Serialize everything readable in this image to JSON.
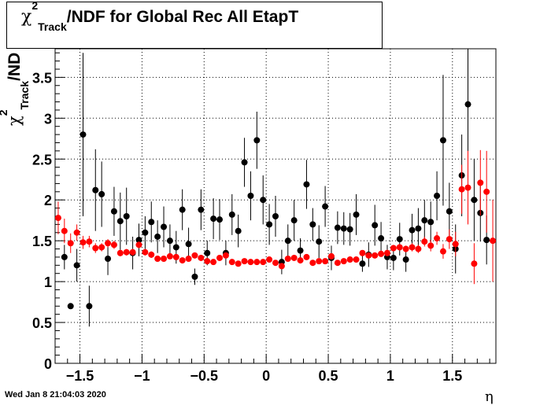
{
  "title": {
    "symbol": "χ",
    "superscript": "2",
    "subscript": "Track",
    "rest": "/NDF for Global Rec All EtapT"
  },
  "ylabel": {
    "symbol": "χ",
    "superscript": "2",
    "subscript": "Track",
    "rest": "/ND"
  },
  "xlabel": "η",
  "footer": "Wed Jan  8 21:04:03 2020",
  "colors": {
    "series_black": "#000000",
    "series_red": "#ff0000",
    "grid": "#000000"
  },
  "chart_data": {
    "type": "scatter",
    "title": "χ2 Track /NDF for Global Rec All EtapT",
    "xlabel": "η",
    "ylabel": "χ2 Track /ND",
    "xlim": [
      -1.7,
      1.85
    ],
    "ylim": [
      0,
      3.85
    ],
    "x_ticks": [
      -1.5,
      -1,
      -0.5,
      0,
      0.5,
      1,
      1.5
    ],
    "x_tick_labels": [
      "−1.5",
      "−1",
      "−0.5",
      "0",
      "0.5",
      "1",
      "1.5"
    ],
    "y_ticks": [
      0,
      0.5,
      1,
      1.5,
      2,
      2.5,
      3,
      3.5
    ],
    "y_tick_labels": [
      "0",
      "0.5",
      "1",
      "1.5",
      "2",
      "2.5",
      "3",
      "3.5"
    ],
    "grid": true,
    "series": [
      {
        "color": "#000000",
        "points": [
          {
            "x": -1.625,
            "y": 1.3,
            "err": 0.15
          },
          {
            "x": -1.575,
            "y": 0.7,
            "err": 0.0
          },
          {
            "x": -1.525,
            "y": 1.2,
            "err": 0.2
          },
          {
            "x": -1.475,
            "y": 2.8,
            "err": 1.0
          },
          {
            "x": -1.425,
            "y": 0.7,
            "err": 0.25
          },
          {
            "x": -1.375,
            "y": 2.12,
            "err": 0.5
          },
          {
            "x": -1.325,
            "y": 2.07,
            "err": 0.4
          },
          {
            "x": -1.275,
            "y": 1.28,
            "err": 0.2
          },
          {
            "x": -1.225,
            "y": 1.86,
            "err": 0.3
          },
          {
            "x": -1.175,
            "y": 1.74,
            "err": 0.35
          },
          {
            "x": -1.125,
            "y": 1.8,
            "err": 0.35
          },
          {
            "x": -1.075,
            "y": 1.35,
            "err": 0.2
          },
          {
            "x": -1.025,
            "y": 1.51,
            "err": 0.2
          },
          {
            "x": -0.975,
            "y": 1.6,
            "err": 0.2
          },
          {
            "x": -0.925,
            "y": 1.73,
            "err": 0.25
          },
          {
            "x": -0.875,
            "y": 1.55,
            "err": 0.2
          },
          {
            "x": -0.825,
            "y": 1.67,
            "err": 0.25
          },
          {
            "x": -0.775,
            "y": 1.5,
            "err": 0.2
          },
          {
            "x": -0.725,
            "y": 1.42,
            "err": 0.2
          },
          {
            "x": -0.675,
            "y": 1.88,
            "err": 0.25
          },
          {
            "x": -0.625,
            "y": 1.46,
            "err": 0.2
          },
          {
            "x": -0.575,
            "y": 1.06,
            "err": 0.1
          },
          {
            "x": -0.525,
            "y": 1.88,
            "err": 0.25
          },
          {
            "x": -0.475,
            "y": 1.35,
            "err": 0.15
          },
          {
            "x": -0.425,
            "y": 1.77,
            "err": 0.25
          },
          {
            "x": -0.375,
            "y": 1.76,
            "err": 0.25
          },
          {
            "x": -0.325,
            "y": 1.35,
            "err": 0.15
          },
          {
            "x": -0.275,
            "y": 1.82,
            "err": 0.25
          },
          {
            "x": -0.225,
            "y": 1.62,
            "err": 0.2
          },
          {
            "x": -0.175,
            "y": 2.46,
            "err": 0.3
          },
          {
            "x": -0.125,
            "y": 2.05,
            "err": 0.3
          },
          {
            "x": -0.075,
            "y": 2.73,
            "err": 0.35
          },
          {
            "x": -0.025,
            "y": 2.0,
            "err": 0.3
          },
          {
            "x": 0.025,
            "y": 1.7,
            "err": 0.25
          },
          {
            "x": 0.075,
            "y": 1.8,
            "err": 0.25
          },
          {
            "x": 0.125,
            "y": 1.24,
            "err": 0.15
          },
          {
            "x": 0.175,
            "y": 1.5,
            "err": 0.2
          },
          {
            "x": 0.225,
            "y": 1.75,
            "err": 0.25
          },
          {
            "x": 0.275,
            "y": 1.38,
            "err": 0.15
          },
          {
            "x": 0.325,
            "y": 2.19,
            "err": 0.3
          },
          {
            "x": 0.375,
            "y": 1.7,
            "err": 0.2
          },
          {
            "x": 0.425,
            "y": 1.49,
            "err": 0.2
          },
          {
            "x": 0.475,
            "y": 1.92,
            "err": 0.25
          },
          {
            "x": 0.525,
            "y": 1.29,
            "err": 0.15
          },
          {
            "x": 0.575,
            "y": 1.66,
            "err": 0.2
          },
          {
            "x": 0.625,
            "y": 1.65,
            "err": 0.2
          },
          {
            "x": 0.675,
            "y": 1.64,
            "err": 0.2
          },
          {
            "x": 0.725,
            "y": 1.82,
            "err": 0.25
          },
          {
            "x": 0.775,
            "y": 1.22,
            "err": 0.1
          },
          {
            "x": 0.825,
            "y": 1.33,
            "err": 0.15
          },
          {
            "x": 0.875,
            "y": 1.69,
            "err": 0.25
          },
          {
            "x": 0.925,
            "y": 1.53,
            "err": 0.2
          },
          {
            "x": 0.975,
            "y": 1.3,
            "err": 0.15
          },
          {
            "x": 1.025,
            "y": 1.29,
            "err": 0.15
          },
          {
            "x": 1.075,
            "y": 1.52,
            "err": 0.2
          },
          {
            "x": 1.125,
            "y": 1.27,
            "err": 0.15
          },
          {
            "x": 1.175,
            "y": 1.63,
            "err": 0.2
          },
          {
            "x": 1.225,
            "y": 1.65,
            "err": 0.25
          },
          {
            "x": 1.275,
            "y": 1.75,
            "err": 0.25
          },
          {
            "x": 1.325,
            "y": 1.73,
            "err": 0.25
          },
          {
            "x": 1.375,
            "y": 2.05,
            "err": 0.3
          },
          {
            "x": 1.425,
            "y": 2.73,
            "err": 0.8
          },
          {
            "x": 1.475,
            "y": 1.86,
            "err": 0.35
          },
          {
            "x": 1.525,
            "y": 1.4,
            "err": 0.3
          },
          {
            "x": 1.575,
            "y": 2.3,
            "err": 0.5
          },
          {
            "x": 1.625,
            "y": 3.17,
            "err": 0.8
          },
          {
            "x": 1.675,
            "y": 2.0,
            "err": 0.5
          },
          {
            "x": 1.725,
            "y": 1.84,
            "err": 0.35
          },
          {
            "x": 1.775,
            "y": 1.51,
            "err": 0.3
          }
        ]
      },
      {
        "color": "#ff0000",
        "points": [
          {
            "x": -1.675,
            "y": 1.78,
            "err": 0.2
          },
          {
            "x": -1.625,
            "y": 1.62,
            "err": 0.15
          },
          {
            "x": -1.575,
            "y": 1.47,
            "err": 0.12
          },
          {
            "x": -1.525,
            "y": 1.6,
            "err": 0.1
          },
          {
            "x": -1.475,
            "y": 1.48,
            "err": 0.08
          },
          {
            "x": -1.425,
            "y": 1.49,
            "err": 0.07
          },
          {
            "x": -1.375,
            "y": 1.41,
            "err": 0.06
          },
          {
            "x": -1.325,
            "y": 1.42,
            "err": 0.05
          },
          {
            "x": -1.275,
            "y": 1.47,
            "err": 0.05
          },
          {
            "x": -1.225,
            "y": 1.45,
            "err": 0.05
          },
          {
            "x": -1.175,
            "y": 1.35,
            "err": 0.04
          },
          {
            "x": -1.125,
            "y": 1.36,
            "err": 0.04
          },
          {
            "x": -1.075,
            "y": 1.36,
            "err": 0.04
          },
          {
            "x": -1.025,
            "y": 1.45,
            "err": 0.04
          },
          {
            "x": -0.975,
            "y": 1.36,
            "err": 0.04
          },
          {
            "x": -0.925,
            "y": 1.33,
            "err": 0.04
          },
          {
            "x": -0.875,
            "y": 1.28,
            "err": 0.03
          },
          {
            "x": -0.825,
            "y": 1.28,
            "err": 0.03
          },
          {
            "x": -0.775,
            "y": 1.31,
            "err": 0.03
          },
          {
            "x": -0.725,
            "y": 1.3,
            "err": 0.03
          },
          {
            "x": -0.675,
            "y": 1.26,
            "err": 0.03
          },
          {
            "x": -0.625,
            "y": 1.28,
            "err": 0.03
          },
          {
            "x": -0.575,
            "y": 1.32,
            "err": 0.03
          },
          {
            "x": -0.525,
            "y": 1.29,
            "err": 0.03
          },
          {
            "x": -0.475,
            "y": 1.25,
            "err": 0.03
          },
          {
            "x": -0.425,
            "y": 1.24,
            "err": 0.03
          },
          {
            "x": -0.375,
            "y": 1.29,
            "err": 0.03
          },
          {
            "x": -0.325,
            "y": 1.32,
            "err": 0.03
          },
          {
            "x": -0.275,
            "y": 1.24,
            "err": 0.03
          },
          {
            "x": -0.225,
            "y": 1.22,
            "err": 0.03
          },
          {
            "x": -0.175,
            "y": 1.25,
            "err": 0.03
          },
          {
            "x": -0.125,
            "y": 1.24,
            "err": 0.03
          },
          {
            "x": -0.075,
            "y": 1.24,
            "err": 0.03
          },
          {
            "x": -0.025,
            "y": 1.24,
            "err": 0.03
          },
          {
            "x": 0.025,
            "y": 1.27,
            "err": 0.03
          },
          {
            "x": 0.075,
            "y": 1.23,
            "err": 0.03
          },
          {
            "x": 0.125,
            "y": 1.19,
            "err": 0.03
          },
          {
            "x": 0.175,
            "y": 1.28,
            "err": 0.03
          },
          {
            "x": 0.225,
            "y": 1.29,
            "err": 0.03
          },
          {
            "x": 0.275,
            "y": 1.26,
            "err": 0.03
          },
          {
            "x": 0.325,
            "y": 1.3,
            "err": 0.03
          },
          {
            "x": 0.375,
            "y": 1.23,
            "err": 0.03
          },
          {
            "x": 0.425,
            "y": 1.25,
            "err": 0.03
          },
          {
            "x": 0.475,
            "y": 1.25,
            "err": 0.03
          },
          {
            "x": 0.525,
            "y": 1.31,
            "err": 0.03
          },
          {
            "x": 0.575,
            "y": 1.23,
            "err": 0.03
          },
          {
            "x": 0.625,
            "y": 1.25,
            "err": 0.03
          },
          {
            "x": 0.675,
            "y": 1.27,
            "err": 0.03
          },
          {
            "x": 0.725,
            "y": 1.27,
            "err": 0.03
          },
          {
            "x": 0.775,
            "y": 1.35,
            "err": 0.03
          },
          {
            "x": 0.825,
            "y": 1.32,
            "err": 0.03
          },
          {
            "x": 0.875,
            "y": 1.32,
            "err": 0.03
          },
          {
            "x": 0.925,
            "y": 1.34,
            "err": 0.04
          },
          {
            "x": 0.975,
            "y": 1.35,
            "err": 0.04
          },
          {
            "x": 1.025,
            "y": 1.41,
            "err": 0.04
          },
          {
            "x": 1.075,
            "y": 1.42,
            "err": 0.04
          },
          {
            "x": 1.125,
            "y": 1.4,
            "err": 0.04
          },
          {
            "x": 1.175,
            "y": 1.42,
            "err": 0.05
          },
          {
            "x": 1.225,
            "y": 1.4,
            "err": 0.05
          },
          {
            "x": 1.275,
            "y": 1.49,
            "err": 0.06
          },
          {
            "x": 1.325,
            "y": 1.44,
            "err": 0.07
          },
          {
            "x": 1.375,
            "y": 1.53,
            "err": 0.08
          },
          {
            "x": 1.425,
            "y": 1.37,
            "err": 0.09
          },
          {
            "x": 1.475,
            "y": 1.52,
            "err": 0.12
          },
          {
            "x": 1.525,
            "y": 1.46,
            "err": 0.15
          },
          {
            "x": 1.575,
            "y": 2.13,
            "err": 0.3
          },
          {
            "x": 1.625,
            "y": 2.15,
            "err": 0.45
          },
          {
            "x": 1.675,
            "y": 1.22,
            "err": 0.25
          },
          {
            "x": 1.725,
            "y": 2.21,
            "err": 0.4
          },
          {
            "x": 1.775,
            "y": 2.1,
            "err": 0.5
          },
          {
            "x": 1.825,
            "y": 1.5,
            "err": 0.5
          }
        ]
      }
    ]
  }
}
